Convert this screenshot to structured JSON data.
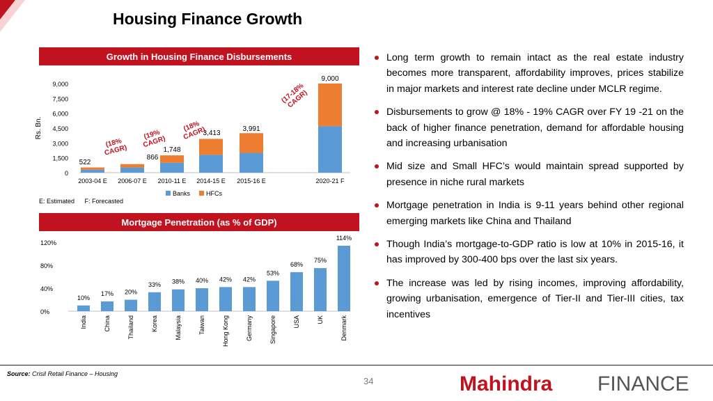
{
  "page": {
    "title": "Housing Finance Growth",
    "footnote_estimated": "E: Estimated",
    "footnote_forecasted": "F: Forecasted",
    "source_label": "Source:",
    "source_text": " Crisil Retail Finance – Housing",
    "page_number": "34",
    "logo_brand": "Mahindra",
    "logo_word": "FINANCE",
    "colors": {
      "brand_red": "#c0121f",
      "banks": "#5b9bd5",
      "hfcs": "#ed7d31",
      "bar": "#5b9bd5"
    }
  },
  "bullets": [
    "Long term growth to remain intact as the real estate industry becomes more transparent, affordability improves, prices stabilize in major markets and interest rate decline under MCLR regime.",
    "Disbursements to grow @ 18% - 19% CAGR over FY 19 -21 on the back of higher finance penetration, demand for affordable housing and increasing urbanisation",
    "Mid size and Small HFC’s would maintain spread supported by presence in niche rural markets",
    "Mortgage penetration in India is 9-11 years behind other regional emerging markets like China and Thailand",
    "Though India’s mortgage-to-GDP ratio is low at 10% in 2015-16, it has improved by 300-400 bps over the last six years.",
    "The increase was led by rising incomes, improving affordability, growing urbanisation, emergence of Tier-II and Tier-III cities, tax incentives"
  ],
  "chart_data": [
    {
      "type": "bar",
      "stacked": true,
      "title": "Growth in Housing Finance Disbursements",
      "ylabel": "Rs. Bn.",
      "ylim": [
        0,
        9000
      ],
      "yticks": [
        "0",
        "1,500",
        "3,000",
        "4,500",
        "6,000",
        "7,500",
        "9,000"
      ],
      "categories": [
        "2003-04 E",
        "2006-07 E",
        "2010-11 E",
        "2014-15 E",
        "2015-16 E",
        "2020-21 F"
      ],
      "totals": [
        522,
        866,
        1748,
        3413,
        3991,
        9000
      ],
      "total_labels": [
        "522",
        "866",
        "1,748",
        "3,413",
        "3,991",
        "9,000"
      ],
      "series": [
        {
          "name": "Banks",
          "color": "#5b9bd5",
          "values": [
            300,
            520,
            1000,
            1800,
            2000,
            4700
          ]
        },
        {
          "name": "HFCs",
          "color": "#ed7d31",
          "values": [
            222,
            346,
            748,
            1613,
            1991,
            4300
          ]
        }
      ],
      "cagr_annotations": [
        "(18% CAGR)",
        "(19% CAGR)",
        "(18% CAGR)",
        "(17-18% CAGR)"
      ],
      "legend": "bottom"
    },
    {
      "type": "bar",
      "title": "Mortgage Penetration (as % of GDP)",
      "ylim": [
        0,
        120
      ],
      "yticks": [
        "0%",
        "40%",
        "80%",
        "120%"
      ],
      "categories": [
        "India",
        "China",
        "Thailand",
        "Korea",
        "Malaysia",
        "Taiwan",
        "Hong Kong",
        "Germany",
        "Singapore",
        "USA",
        "UK",
        "Denmark"
      ],
      "values": [
        10,
        17,
        20,
        33,
        38,
        40,
        42,
        42,
        53,
        68,
        75,
        114
      ],
      "value_labels": [
        "10%",
        "17%",
        "20%",
        "33%",
        "38%",
        "40%",
        "42%",
        "42%",
        "53%",
        "68%",
        "75%",
        "114%"
      ],
      "color": "#5b9bd5"
    }
  ]
}
